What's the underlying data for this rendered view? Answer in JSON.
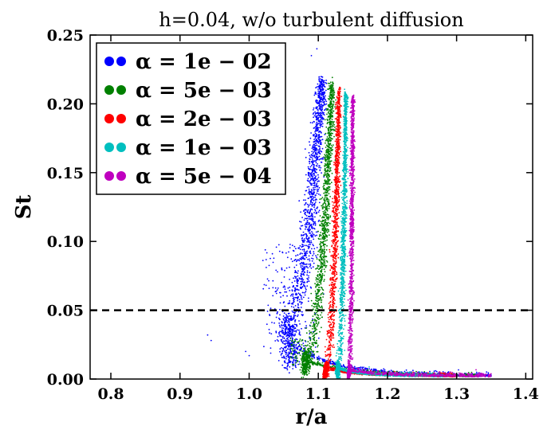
{
  "chart_data": {
    "type": "scatter",
    "title": "h=0.04, w/o turbulent diffusion",
    "xlabel": "r/a",
    "ylabel": "St",
    "xlim": [
      0.77,
      1.41
    ],
    "ylim": [
      0.0,
      0.25
    ],
    "xticks": [
      "0.8",
      "0.9",
      "1.0",
      "1.1",
      "1.2",
      "1.3",
      "1.4"
    ],
    "yticks": [
      "0.00",
      "0.05",
      "0.10",
      "0.15",
      "0.20",
      "0.25"
    ],
    "grid": false,
    "legend_position": "top-left",
    "reference_line": {
      "y": 0.05,
      "style": "dashed"
    },
    "series": [
      {
        "name": "α = 1e − 02",
        "color": "#0000ff",
        "knee": {
          "x": 1.056,
          "y": 0.045
        },
        "top": {
          "x": 1.105,
          "y": 0.218
        },
        "tail_end": {
          "x": 1.35,
          "y": 0.001
        },
        "points": [
          [
            1.06,
            0.02
          ],
          [
            1.056,
            0.045
          ],
          [
            1.065,
            0.07
          ],
          [
            1.08,
            0.1
          ],
          [
            1.095,
            0.15
          ],
          [
            1.104,
            0.2
          ],
          [
            1.105,
            0.218
          ],
          [
            1.2,
            0.012
          ],
          [
            1.3,
            0.003
          ]
        ]
      },
      {
        "name": "α = 5e − 03",
        "color": "#008000",
        "knee": {
          "x": 1.084,
          "y": 0.02
        },
        "top": {
          "x": 1.12,
          "y": 0.215
        },
        "tail_end": {
          "x": 1.33,
          "y": 0.001
        },
        "points": [
          [
            1.07,
            0.012
          ],
          [
            1.084,
            0.02
          ],
          [
            1.095,
            0.05
          ],
          [
            1.11,
            0.12
          ],
          [
            1.118,
            0.2
          ],
          [
            1.12,
            0.215
          ],
          [
            1.22,
            0.008
          ]
        ]
      },
      {
        "name": "α = 2e − 03",
        "color": "#ff0000",
        "knee": {
          "x": 1.112,
          "y": 0.01
        },
        "top": {
          "x": 1.13,
          "y": 0.21
        },
        "tail_end": {
          "x": 1.3,
          "y": 0.001
        },
        "points": [
          [
            1.107,
            0.005
          ],
          [
            1.112,
            0.01
          ],
          [
            1.12,
            0.05
          ],
          [
            1.128,
            0.15
          ],
          [
            1.13,
            0.21
          ],
          [
            1.2,
            0.005
          ]
        ]
      },
      {
        "name": "α = 1e − 03",
        "color": "#00bfbf",
        "knee": {
          "x": 1.129,
          "y": 0.01
        },
        "top": {
          "x": 1.14,
          "y": 0.207
        },
        "tail_end": {
          "x": 1.28,
          "y": 0.001
        },
        "points": [
          [
            1.127,
            0.006
          ],
          [
            1.129,
            0.01
          ],
          [
            1.135,
            0.05
          ],
          [
            1.14,
            0.15
          ],
          [
            1.14,
            0.207
          ],
          [
            1.2,
            0.003
          ]
        ]
      },
      {
        "name": "α = 5e − 04",
        "color": "#bf00bf",
        "knee": {
          "x": 1.145,
          "y": 0.008
        },
        "top": {
          "x": 1.15,
          "y": 0.205
        },
        "tail_end": {
          "x": 1.35,
          "y": 0.001
        },
        "points": [
          [
            1.143,
            0.005
          ],
          [
            1.145,
            0.008
          ],
          [
            1.148,
            0.05
          ],
          [
            1.15,
            0.15
          ],
          [
            1.15,
            0.205
          ],
          [
            1.25,
            0.002
          ]
        ]
      }
    ]
  }
}
